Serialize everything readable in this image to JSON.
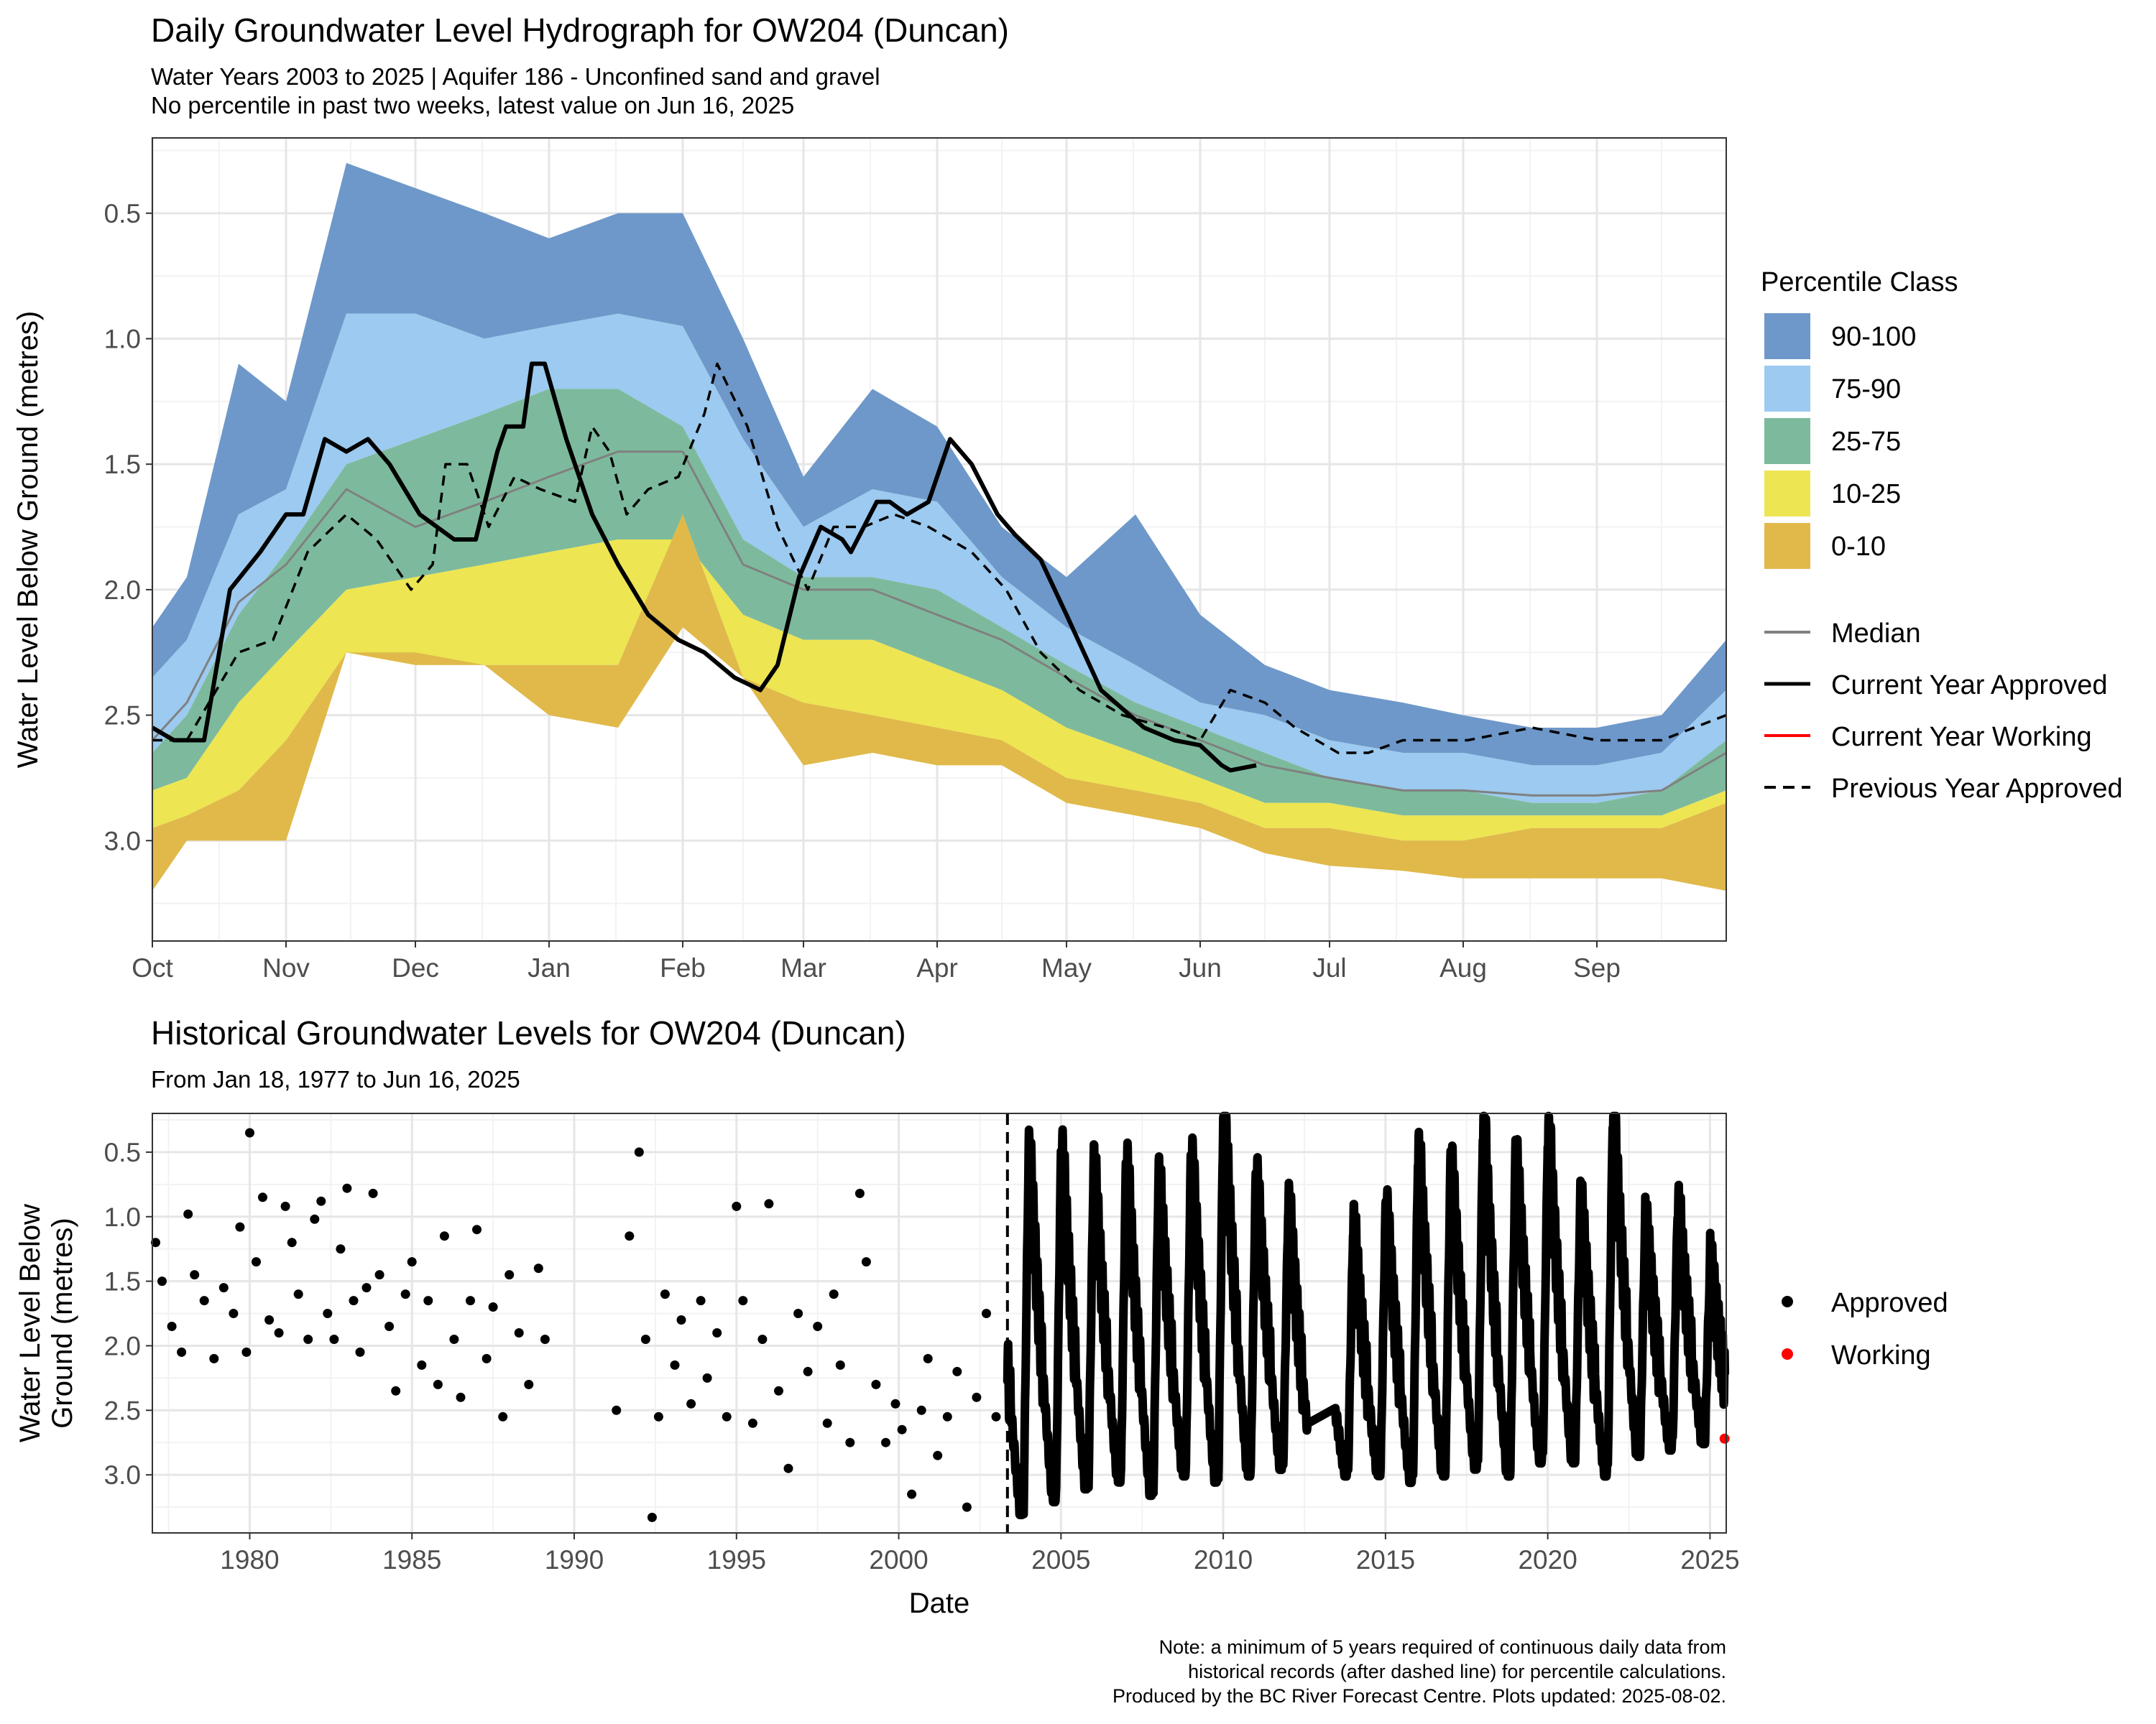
{
  "top": {
    "title": "Daily Groundwater Level Hydrograph for OW204 (Duncan)",
    "subtitle_1": "Water Years 2003 to 2025 | Aquifer 186 - Unconfined sand and gravel",
    "subtitle_2": "No percentile in past two weeks, latest value on Jun 16, 2025",
    "ylabel": "Water Level Below Ground (metres)",
    "legend_title": "Percentile Class",
    "legend_fills": [
      {
        "label": "90-100",
        "color": "#6e98c9"
      },
      {
        "label": "75-90",
        "color": "#9ccaf0"
      },
      {
        "label": "25-75",
        "color": "#7dba9d"
      },
      {
        "label": "10-25",
        "color": "#ede552"
      },
      {
        "label": "0-10",
        "color": "#e0b94a"
      }
    ],
    "legend_lines": [
      {
        "label": "Median",
        "color": "#808080",
        "style": "solid"
      },
      {
        "label": "Current Year Approved",
        "color": "#000000",
        "style": "solid"
      },
      {
        "label": "Current Year Working",
        "color": "#ff0000",
        "style": "solid"
      },
      {
        "label": "Previous Year Approved",
        "color": "#000000",
        "style": "dashed"
      }
    ]
  },
  "bottom": {
    "title": "Historical Groundwater Levels for OW204 (Duncan)",
    "subtitle": "From Jan 18, 1977 to Jun 16, 2025",
    "ylabel_1": "Water Level Below",
    "ylabel_2": "Ground (metres)",
    "xlabel": "Date",
    "legend": [
      {
        "label": "Approved",
        "color": "#000000"
      },
      {
        "label": "Working",
        "color": "#ff0000"
      }
    ]
  },
  "note": {
    "line_1": "Note: a minimum of 5 years required of continuous daily data from",
    "line_2": "historical records (after dashed line) for percentile calculations.",
    "line_3": "Produced by the BC River Forecast Centre. Plots updated: 2025-08-02."
  },
  "chart_data": [
    {
      "type": "area",
      "title": "Daily Groundwater Level Hydrograph for OW204 (Duncan)",
      "ylabel": "Water Level Below Ground (metres)",
      "y_reversed": true,
      "ylim": [
        0.2,
        3.4
      ],
      "yticks": [
        0.5,
        1.0,
        1.5,
        2.0,
        2.5,
        3.0
      ],
      "ytick_labels": [
        "0.5",
        "1.0",
        "1.5",
        "2.0",
        "2.5",
        "3.0"
      ],
      "xlim": [
        0,
        365
      ],
      "xticks": [
        0,
        31,
        61,
        92,
        123,
        151,
        182,
        212,
        243,
        273,
        304,
        335
      ],
      "xtick_labels": [
        "Oct",
        "Nov",
        "Dec",
        "Jan",
        "Feb",
        "Mar",
        "Apr",
        "May",
        "Jun",
        "Jul",
        "Aug",
        "Sep"
      ],
      "grid": true,
      "legend_position": "right",
      "x": [
        0,
        8,
        20,
        31,
        45,
        61,
        77,
        92,
        108,
        123,
        137,
        151,
        167,
        182,
        197,
        212,
        228,
        243,
        258,
        273,
        290,
        304,
        320,
        335,
        350,
        365
      ],
      "bands": {
        "b100": [
          2.15,
          1.95,
          1.1,
          1.25,
          0.3,
          0.4,
          0.5,
          0.6,
          0.5,
          0.5,
          1.0,
          1.55,
          1.2,
          1.35,
          1.75,
          1.95,
          1.7,
          2.1,
          2.3,
          2.4,
          2.45,
          2.5,
          2.55,
          2.55,
          2.5,
          2.2
        ],
        "b90": [
          2.35,
          2.2,
          1.7,
          1.6,
          0.9,
          0.9,
          1.0,
          0.95,
          0.9,
          0.95,
          1.4,
          1.75,
          1.6,
          1.65,
          1.95,
          2.15,
          2.3,
          2.45,
          2.5,
          2.6,
          2.65,
          2.65,
          2.7,
          2.7,
          2.65,
          2.4
        ],
        "b75": [
          2.65,
          2.5,
          2.1,
          1.85,
          1.5,
          1.4,
          1.3,
          1.2,
          1.2,
          1.35,
          1.8,
          1.95,
          1.95,
          2.0,
          2.15,
          2.3,
          2.45,
          2.55,
          2.65,
          2.75,
          2.8,
          2.8,
          2.85,
          2.85,
          2.8,
          2.6
        ],
        "b25": [
          2.8,
          2.75,
          2.45,
          2.25,
          2.0,
          1.95,
          1.9,
          1.85,
          1.8,
          1.8,
          2.1,
          2.2,
          2.2,
          2.3,
          2.4,
          2.55,
          2.65,
          2.75,
          2.85,
          2.85,
          2.9,
          2.9,
          2.9,
          2.9,
          2.9,
          2.8
        ],
        "b10": [
          2.95,
          2.9,
          2.8,
          2.6,
          2.25,
          2.3,
          2.3,
          2.3,
          2.3,
          1.7,
          2.35,
          2.45,
          2.5,
          2.55,
          2.6,
          2.75,
          2.8,
          2.85,
          2.95,
          2.95,
          3.0,
          3.0,
          2.95,
          2.95,
          2.95,
          2.85
        ],
        "b0": [
          3.2,
          3.0,
          3.0,
          3.0,
          2.25,
          2.25,
          2.3,
          2.5,
          2.55,
          2.15,
          2.35,
          2.7,
          2.65,
          2.7,
          2.7,
          2.85,
          2.9,
          2.95,
          3.05,
          3.1,
          3.12,
          3.15,
          3.15,
          3.15,
          3.15,
          3.2
        ]
      },
      "series": [
        {
          "name": "Median",
          "x": [
            0,
            8,
            20,
            31,
            45,
            61,
            77,
            92,
            108,
            123,
            137,
            151,
            167,
            182,
            197,
            212,
            228,
            243,
            258,
            273,
            290,
            304,
            320,
            335,
            350,
            365
          ],
          "y": [
            2.6,
            2.45,
            2.05,
            1.9,
            1.6,
            1.75,
            1.65,
            1.55,
            1.45,
            1.45,
            1.9,
            2.0,
            2.0,
            2.1,
            2.2,
            2.35,
            2.5,
            2.6,
            2.7,
            2.75,
            2.8,
            2.8,
            2.82,
            2.82,
            2.8,
            2.65
          ]
        },
        {
          "name": "Current Year Approved",
          "x": [
            0,
            5,
            12,
            18,
            25,
            31,
            35,
            40,
            45,
            50,
            55,
            62,
            70,
            75,
            80,
            82,
            86,
            88,
            91,
            96,
            102,
            108,
            115,
            122,
            128,
            135,
            141,
            145,
            150,
            155,
            160,
            162,
            168,
            171,
            175,
            180,
            185,
            190,
            196,
            200,
            206,
            212,
            220,
            230,
            237,
            243,
            248,
            250,
            256
          ],
          "y": [
            2.55,
            2.6,
            2.6,
            2.0,
            1.85,
            1.7,
            1.7,
            1.4,
            1.45,
            1.4,
            1.5,
            1.7,
            1.8,
            1.8,
            1.45,
            1.35,
            1.35,
            1.1,
            1.1,
            1.4,
            1.7,
            1.9,
            2.1,
            2.2,
            2.25,
            2.35,
            2.4,
            2.3,
            1.95,
            1.75,
            1.8,
            1.85,
            1.65,
            1.65,
            1.7,
            1.65,
            1.4,
            1.5,
            1.7,
            1.78,
            1.88,
            2.1,
            2.4,
            2.55,
            2.6,
            2.62,
            2.7,
            2.72,
            2.7
          ]
        },
        {
          "name": "Previous Year Approved",
          "x": [
            0,
            8,
            20,
            28,
            36,
            45,
            52,
            60,
            65,
            68,
            73,
            78,
            84,
            90,
            98,
            102,
            106,
            110,
            115,
            122,
            128,
            131,
            138,
            145,
            152,
            158,
            165,
            172,
            180,
            190,
            198,
            206,
            215,
            225,
            235,
            243,
            250,
            258,
            265,
            275,
            282,
            290,
            305,
            320,
            335,
            350,
            365
          ],
          "y": [
            2.6,
            2.6,
            2.25,
            2.2,
            1.85,
            1.7,
            1.8,
            2.0,
            1.9,
            1.5,
            1.5,
            1.75,
            1.55,
            1.6,
            1.65,
            1.35,
            1.45,
            1.7,
            1.6,
            1.55,
            1.3,
            1.1,
            1.35,
            1.75,
            2.0,
            1.75,
            1.75,
            1.7,
            1.75,
            1.85,
            2.0,
            2.25,
            2.4,
            2.5,
            2.55,
            2.6,
            2.4,
            2.45,
            2.55,
            2.65,
            2.65,
            2.6,
            2.6,
            2.55,
            2.6,
            2.6,
            2.5
          ]
        }
      ]
    },
    {
      "type": "scatter",
      "title": "Historical Groundwater Levels for OW204 (Duncan)",
      "xlabel": "Date",
      "ylabel": "Water Level Below Ground (metres)",
      "y_reversed": true,
      "ylim": [
        0.2,
        3.45
      ],
      "yticks": [
        0.5,
        1.0,
        1.5,
        2.0,
        2.5,
        3.0
      ],
      "ytick_labels": [
        "0.5",
        "1.0",
        "1.5",
        "2.0",
        "2.5",
        "3.0"
      ],
      "xlim": [
        1977.0,
        2025.5
      ],
      "xticks": [
        1980,
        1985,
        1990,
        1995,
        2000,
        2005,
        2010,
        2015,
        2020,
        2025
      ],
      "xtick_labels": [
        "1980",
        "1985",
        "1990",
        "1995",
        "2000",
        "2005",
        "2010",
        "2015",
        "2020",
        "2025"
      ],
      "threshold_year": 2003.35,
      "grid": true,
      "legend_position": "right",
      "approved_sparse": [
        [
          1977.1,
          1.2
        ],
        [
          1977.3,
          1.5
        ],
        [
          1977.6,
          1.85
        ],
        [
          1977.9,
          2.05
        ],
        [
          1978.1,
          0.98
        ],
        [
          1978.3,
          1.45
        ],
        [
          1978.6,
          1.65
        ],
        [
          1978.9,
          2.1
        ],
        [
          1979.2,
          1.55
        ],
        [
          1979.5,
          1.75
        ],
        [
          1979.7,
          1.08
        ],
        [
          1979.9,
          2.05
        ],
        [
          1980.0,
          0.35
        ],
        [
          1980.2,
          1.35
        ],
        [
          1980.4,
          0.85
        ],
        [
          1980.6,
          1.8
        ],
        [
          1980.9,
          1.9
        ],
        [
          1981.1,
          0.92
        ],
        [
          1981.3,
          1.2
        ],
        [
          1981.5,
          1.6
        ],
        [
          1981.8,
          1.95
        ],
        [
          1982.0,
          1.02
        ],
        [
          1982.2,
          0.88
        ],
        [
          1982.4,
          1.75
        ],
        [
          1982.6,
          1.95
        ],
        [
          1982.8,
          1.25
        ],
        [
          1983.0,
          0.78
        ],
        [
          1983.2,
          1.65
        ],
        [
          1983.4,
          2.05
        ],
        [
          1983.6,
          1.55
        ],
        [
          1983.8,
          0.82
        ],
        [
          1984.0,
          1.45
        ],
        [
          1984.3,
          1.85
        ],
        [
          1984.5,
          2.35
        ],
        [
          1984.8,
          1.6
        ],
        [
          1985.0,
          1.35
        ],
        [
          1985.3,
          2.15
        ],
        [
          1985.5,
          1.65
        ],
        [
          1985.8,
          2.3
        ],
        [
          1986.0,
          1.15
        ],
        [
          1986.3,
          1.95
        ],
        [
          1986.5,
          2.4
        ],
        [
          1986.8,
          1.65
        ],
        [
          1987.0,
          1.1
        ],
        [
          1987.3,
          2.1
        ],
        [
          1987.5,
          1.7
        ],
        [
          1987.8,
          2.55
        ],
        [
          1988.0,
          1.45
        ],
        [
          1988.3,
          1.9
        ],
        [
          1988.6,
          2.3
        ],
        [
          1988.9,
          1.4
        ],
        [
          1989.1,
          1.95
        ],
        [
          1991.3,
          2.5
        ],
        [
          1991.7,
          1.15
        ],
        [
          1992.0,
          0.5
        ],
        [
          1992.2,
          1.95
        ],
        [
          1992.4,
          3.33
        ],
        [
          1992.6,
          2.55
        ],
        [
          1992.8,
          1.6
        ],
        [
          1993.1,
          2.15
        ],
        [
          1993.3,
          1.8
        ],
        [
          1993.6,
          2.45
        ],
        [
          1993.9,
          1.65
        ],
        [
          1994.1,
          2.25
        ],
        [
          1994.4,
          1.9
        ],
        [
          1994.7,
          2.55
        ],
        [
          1995.0,
          0.92
        ],
        [
          1995.2,
          1.65
        ],
        [
          1995.5,
          2.6
        ],
        [
          1995.8,
          1.95
        ],
        [
          1996.0,
          0.9
        ],
        [
          1996.3,
          2.35
        ],
        [
          1996.6,
          2.95
        ],
        [
          1996.9,
          1.75
        ],
        [
          1997.2,
          2.2
        ],
        [
          1997.5,
          1.85
        ],
        [
          1997.8,
          2.6
        ],
        [
          1998.0,
          1.6
        ],
        [
          1998.2,
          2.15
        ],
        [
          1998.5,
          2.75
        ],
        [
          1998.8,
          0.82
        ],
        [
          1999.0,
          1.35
        ],
        [
          1999.3,
          2.3
        ],
        [
          1999.6,
          2.75
        ],
        [
          1999.9,
          2.45
        ],
        [
          2000.1,
          2.65
        ],
        [
          2000.4,
          3.15
        ],
        [
          2000.7,
          2.5
        ],
        [
          2000.9,
          2.1
        ],
        [
          2001.2,
          2.85
        ],
        [
          2001.5,
          2.55
        ],
        [
          2001.8,
          2.2
        ],
        [
          2002.1,
          3.25
        ],
        [
          2002.4,
          2.4
        ],
        [
          2002.7,
          1.75
        ],
        [
          2003.0,
          2.55
        ]
      ],
      "approved_continuous_years": [
        2003,
        2004,
        2005,
        2006,
        2007,
        2008,
        2009,
        2010,
        2011,
        2012,
        2013,
        2014,
        2015,
        2016,
        2017,
        2018,
        2019,
        2020,
        2021,
        2022,
        2023,
        2024,
        2025
      ],
      "working": [
        [
          2025.45,
          2.72
        ]
      ]
    }
  ]
}
